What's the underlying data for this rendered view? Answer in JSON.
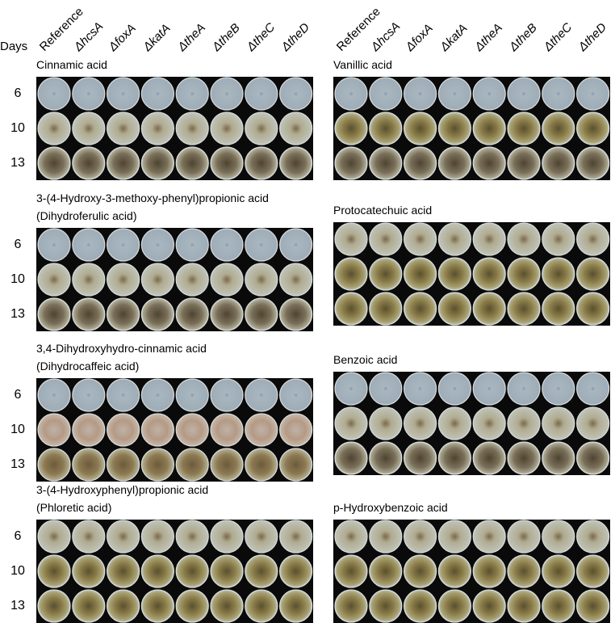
{
  "header": {
    "days": "Days",
    "columns": [
      "Reference",
      "ΔhcsA",
      "ΔfoxA",
      "ΔkatA",
      "ΔtheA",
      "ΔtheB",
      "ΔtheC",
      "ΔtheD"
    ]
  },
  "left_panels": [
    {
      "title": [
        "Cinnamic acid"
      ],
      "rows": [
        "6",
        "10",
        "13"
      ]
    },
    {
      "title": [
        "3-(4-Hydroxy-3-methoxy-phenyl)propionic acid",
        "(Dihydroferulic acid)"
      ],
      "rows": [
        "6",
        "10",
        "13"
      ]
    },
    {
      "title": [
        "3,4-Dihydroxyhydro-cinnamic acid",
        "(Dihydrocaffeic acid)"
      ],
      "rows": [
        "6",
        "10",
        "13"
      ]
    },
    {
      "title": [
        "3-(4-Hydroxyphenyl)propionic acid",
        "(Phloretic acid)"
      ],
      "rows": [
        "6",
        "10",
        "13"
      ]
    }
  ],
  "right_panels": [
    {
      "title": [
        "Vanillic acid"
      ]
    },
    {
      "title": [
        "Protocatechuic acid"
      ]
    },
    {
      "title": [
        "Benzoic acid"
      ]
    },
    {
      "title": [
        "p-Hydroxybenzoic acid"
      ]
    }
  ]
}
